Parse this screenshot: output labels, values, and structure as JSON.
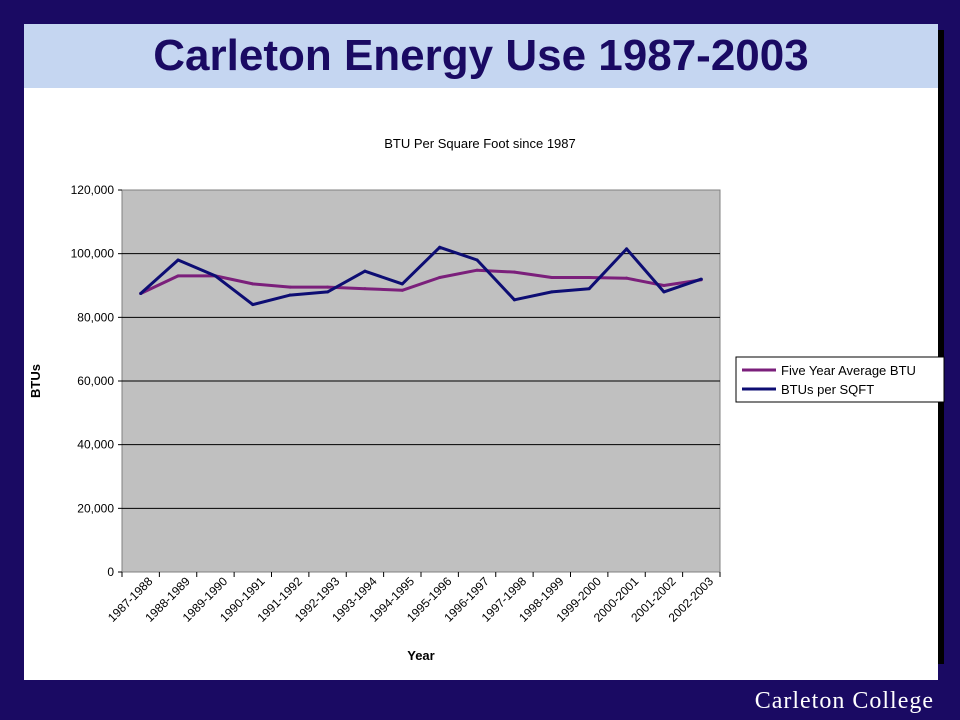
{
  "slide": {
    "title": "Carleton Energy Use 1987-2003",
    "footer": "Carleton College"
  },
  "colors": {
    "background": "#1a0a63",
    "title_band": "#c5d6f1",
    "plot_area": "#c0c0c0",
    "five_year": "#7b1f7b",
    "btus": "#0d0d73"
  },
  "chart_data": {
    "type": "line",
    "title": "BTU Per Square Foot since 1987",
    "xlabel": "Year",
    "ylabel": "BTUs",
    "ylim": [
      0,
      120000
    ],
    "yticks": [
      0,
      20000,
      40000,
      60000,
      80000,
      100000,
      120000
    ],
    "ytick_labels": [
      "0",
      "20,000",
      "40,000",
      "60,000",
      "80,000",
      "100,000",
      "120,000"
    ],
    "grid": true,
    "legend_position": "right",
    "categories": [
      "1987-1988",
      "1988-1989",
      "1989-1990",
      "1990-1991",
      "1991-1992",
      "1992-1993",
      "1993-1994",
      "1994-1995",
      "1995-1996",
      "1996-1997",
      "1997-1998",
      "1998-1999",
      "1999-2000",
      "2000-2001",
      "2001-2002",
      "2002-2003"
    ],
    "series": [
      {
        "name": "Five Year Average BTU",
        "color": "#7b1f7b",
        "values": [
          87500,
          93000,
          93000,
          90500,
          89500,
          89500,
          89000,
          88500,
          92500,
          94800,
          94200,
          92500,
          92500,
          92300,
          90000,
          91800
        ]
      },
      {
        "name": "BTUs per SQFT",
        "color": "#0d0d73",
        "values": [
          87500,
          98000,
          93000,
          84000,
          87000,
          88000,
          94500,
          90500,
          102000,
          98000,
          85500,
          88000,
          89000,
          101500,
          88000,
          92000
        ]
      }
    ]
  }
}
